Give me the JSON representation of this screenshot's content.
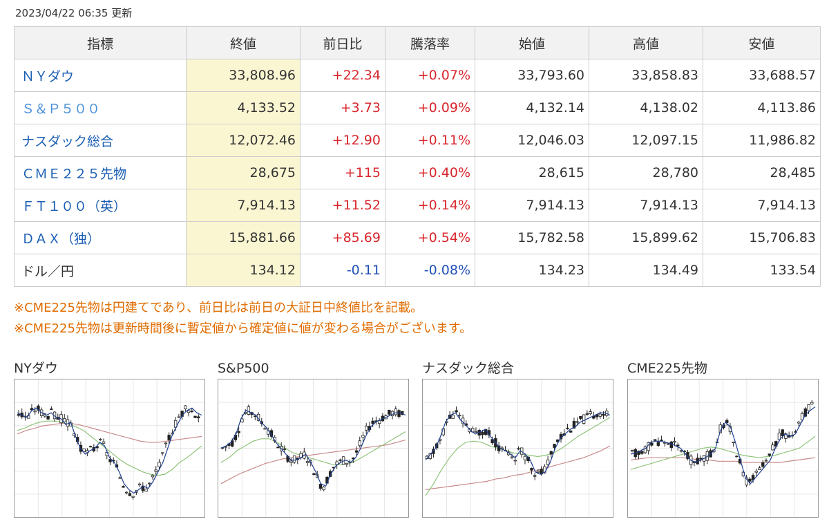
{
  "timestamp": "2023/04/22 06:35 更新",
  "table": {
    "headers": [
      "指標",
      "終値",
      "前日比",
      "騰落率",
      "始値",
      "高値",
      "安値"
    ],
    "rows": [
      {
        "name": "ＮＹダウ",
        "close": "33,808.96",
        "change": "+22.34",
        "rate": "+0.07%",
        "open": "33,793.60",
        "high": "33,858.83",
        "low": "33,688.57",
        "dir": "up",
        "name_style": "link"
      },
      {
        "name": "Ｓ＆Ｐ５００",
        "close": "4,133.52",
        "change": "+3.73",
        "rate": "+0.09%",
        "open": "4,132.14",
        "high": "4,138.02",
        "low": "4,113.86",
        "dir": "up",
        "name_style": "light"
      },
      {
        "name": "ナスダック総合",
        "close": "12,072.46",
        "change": "+12.90",
        "rate": "+0.11%",
        "open": "12,046.03",
        "high": "12,097.15",
        "low": "11,986.82",
        "dir": "up",
        "name_style": "link"
      },
      {
        "name": "ＣＭＥ２２５先物",
        "close": "28,675",
        "change": "+115",
        "rate": "+0.40%",
        "open": "28,615",
        "high": "28,780",
        "low": "28,485",
        "dir": "up",
        "name_style": "link"
      },
      {
        "name": "ＦＴ１００（英）",
        "close": "7,914.13",
        "change": "+11.52",
        "rate": "+0.14%",
        "open": "7,914.13",
        "high": "7,914.13",
        "low": "7,914.13",
        "dir": "up",
        "name_style": "link"
      },
      {
        "name": "ＤＡＸ（独）",
        "close": "15,881.66",
        "change": "+85.69",
        "rate": "+0.54%",
        "open": "15,782.58",
        "high": "15,899.62",
        "low": "15,706.83",
        "dir": "up",
        "name_style": "link"
      },
      {
        "name": "ドル／円",
        "close": "134.12",
        "change": "-0.11",
        "rate": "-0.08%",
        "open": "134.23",
        "high": "134.49",
        "low": "133.54",
        "dir": "down",
        "name_style": "plain"
      }
    ]
  },
  "notes": [
    "※CME225先物は円建てであり、前日比は前日の大証日中終値比を記載。",
    "※CME225先物は更新時間後に暫定値から確定値に値が変わる場合がございます。"
  ],
  "colors": {
    "up": "#d8262c",
    "down": "#1f4fb8",
    "link": "#1a5fb4",
    "note": "#e06c00",
    "close_bg": "#fbf6d2",
    "ma_short": "#1f3f8f",
    "ma_mid": "#8fc47a",
    "ma_long": "#c98a8a"
  },
  "charts": [
    {
      "title": "NYダウ",
      "seed": 3,
      "price": [
        0.8,
        0.78,
        0.76,
        0.82,
        0.84,
        0.8,
        0.78,
        0.8,
        0.76,
        0.75,
        0.7,
        0.72,
        0.6,
        0.5,
        0.45,
        0.48,
        0.5,
        0.55,
        0.52,
        0.42,
        0.38,
        0.3,
        0.2,
        0.15,
        0.12,
        0.15,
        0.18,
        0.16,
        0.22,
        0.3,
        0.38,
        0.5,
        0.62,
        0.7,
        0.78,
        0.82,
        0.84,
        0.8,
        0.78
      ],
      "ma_mid": [
        0.65,
        0.67,
        0.7,
        0.72,
        0.73,
        0.73,
        0.72,
        0.7,
        0.68,
        0.65,
        0.6,
        0.55,
        0.5,
        0.45,
        0.4,
        0.36,
        0.33,
        0.3,
        0.28,
        0.27,
        0.28,
        0.32,
        0.38,
        0.42,
        0.47,
        0.52
      ],
      "ma_long": [
        0.62,
        0.65,
        0.67,
        0.69,
        0.7,
        0.71,
        0.71,
        0.7,
        0.68,
        0.66,
        0.64,
        0.62,
        0.6,
        0.58,
        0.56,
        0.55,
        0.55,
        0.56,
        0.57,
        0.58,
        0.59,
        0.6
      ]
    },
    {
      "title": "S&P500",
      "seed": 7,
      "price": [
        0.5,
        0.52,
        0.55,
        0.62,
        0.75,
        0.82,
        0.8,
        0.78,
        0.72,
        0.68,
        0.62,
        0.55,
        0.5,
        0.45,
        0.4,
        0.4,
        0.42,
        0.45,
        0.38,
        0.3,
        0.2,
        0.18,
        0.28,
        0.35,
        0.38,
        0.4,
        0.38,
        0.42,
        0.5,
        0.6,
        0.68,
        0.72,
        0.74,
        0.76,
        0.78,
        0.8,
        0.8,
        0.78
      ],
      "ma_mid": [
        0.38,
        0.42,
        0.48,
        0.52,
        0.56,
        0.58,
        0.58,
        0.55,
        0.5,
        0.46,
        0.44,
        0.42,
        0.4,
        0.38,
        0.36,
        0.36,
        0.37,
        0.4,
        0.44,
        0.48,
        0.52,
        0.56,
        0.6,
        0.64
      ],
      "ma_long": [
        0.2,
        0.24,
        0.28,
        0.31,
        0.34,
        0.37,
        0.39,
        0.41,
        0.42,
        0.43,
        0.44,
        0.45,
        0.46,
        0.47,
        0.48,
        0.49,
        0.5,
        0.51,
        0.52,
        0.53,
        0.55,
        0.57
      ]
    },
    {
      "title": "ナスダック総合",
      "seed": 11,
      "price": [
        0.4,
        0.45,
        0.5,
        0.6,
        0.72,
        0.78,
        0.8,
        0.74,
        0.7,
        0.65,
        0.62,
        0.64,
        0.66,
        0.6,
        0.55,
        0.5,
        0.48,
        0.45,
        0.42,
        0.48,
        0.45,
        0.4,
        0.3,
        0.28,
        0.3,
        0.38,
        0.5,
        0.58,
        0.62,
        0.66,
        0.68,
        0.72,
        0.74,
        0.76,
        0.78,
        0.8,
        0.8,
        0.78
      ],
      "ma_mid": [
        0.1,
        0.2,
        0.32,
        0.42,
        0.5,
        0.55,
        0.56,
        0.55,
        0.52,
        0.5,
        0.48,
        0.46,
        0.45,
        0.44,
        0.43,
        0.44,
        0.46,
        0.5,
        0.55,
        0.6,
        0.64,
        0.68,
        0.72,
        0.76
      ],
      "ma_long": [
        0.15,
        0.16,
        0.17,
        0.18,
        0.19,
        0.2,
        0.21,
        0.22,
        0.24,
        0.25,
        0.27,
        0.28,
        0.3,
        0.32,
        0.34,
        0.36,
        0.38,
        0.4,
        0.42,
        0.45,
        0.48,
        0.52
      ]
    },
    {
      "title": "CME225先物",
      "seed": 17,
      "price": [
        0.45,
        0.46,
        0.48,
        0.5,
        0.55,
        0.56,
        0.56,
        0.55,
        0.54,
        0.52,
        0.5,
        0.45,
        0.4,
        0.38,
        0.4,
        0.42,
        0.45,
        0.5,
        0.65,
        0.72,
        0.68,
        0.55,
        0.4,
        0.25,
        0.2,
        0.25,
        0.3,
        0.35,
        0.4,
        0.5,
        0.58,
        0.62,
        0.6,
        0.62,
        0.7,
        0.78,
        0.82,
        0.85
      ],
      "ma_mid": [
        0.32,
        0.34,
        0.36,
        0.38,
        0.4,
        0.42,
        0.44,
        0.46,
        0.48,
        0.5,
        0.51,
        0.5,
        0.48,
        0.46,
        0.44,
        0.43,
        0.42,
        0.43,
        0.44,
        0.46,
        0.48,
        0.5,
        0.55,
        0.6
      ],
      "ma_long": [
        0.4,
        0.41,
        0.42,
        0.42,
        0.42,
        0.42,
        0.42,
        0.41,
        0.4,
        0.4,
        0.39,
        0.39,
        0.39,
        0.38,
        0.38,
        0.38,
        0.38,
        0.38,
        0.39,
        0.4,
        0.41,
        0.42
      ]
    }
  ]
}
